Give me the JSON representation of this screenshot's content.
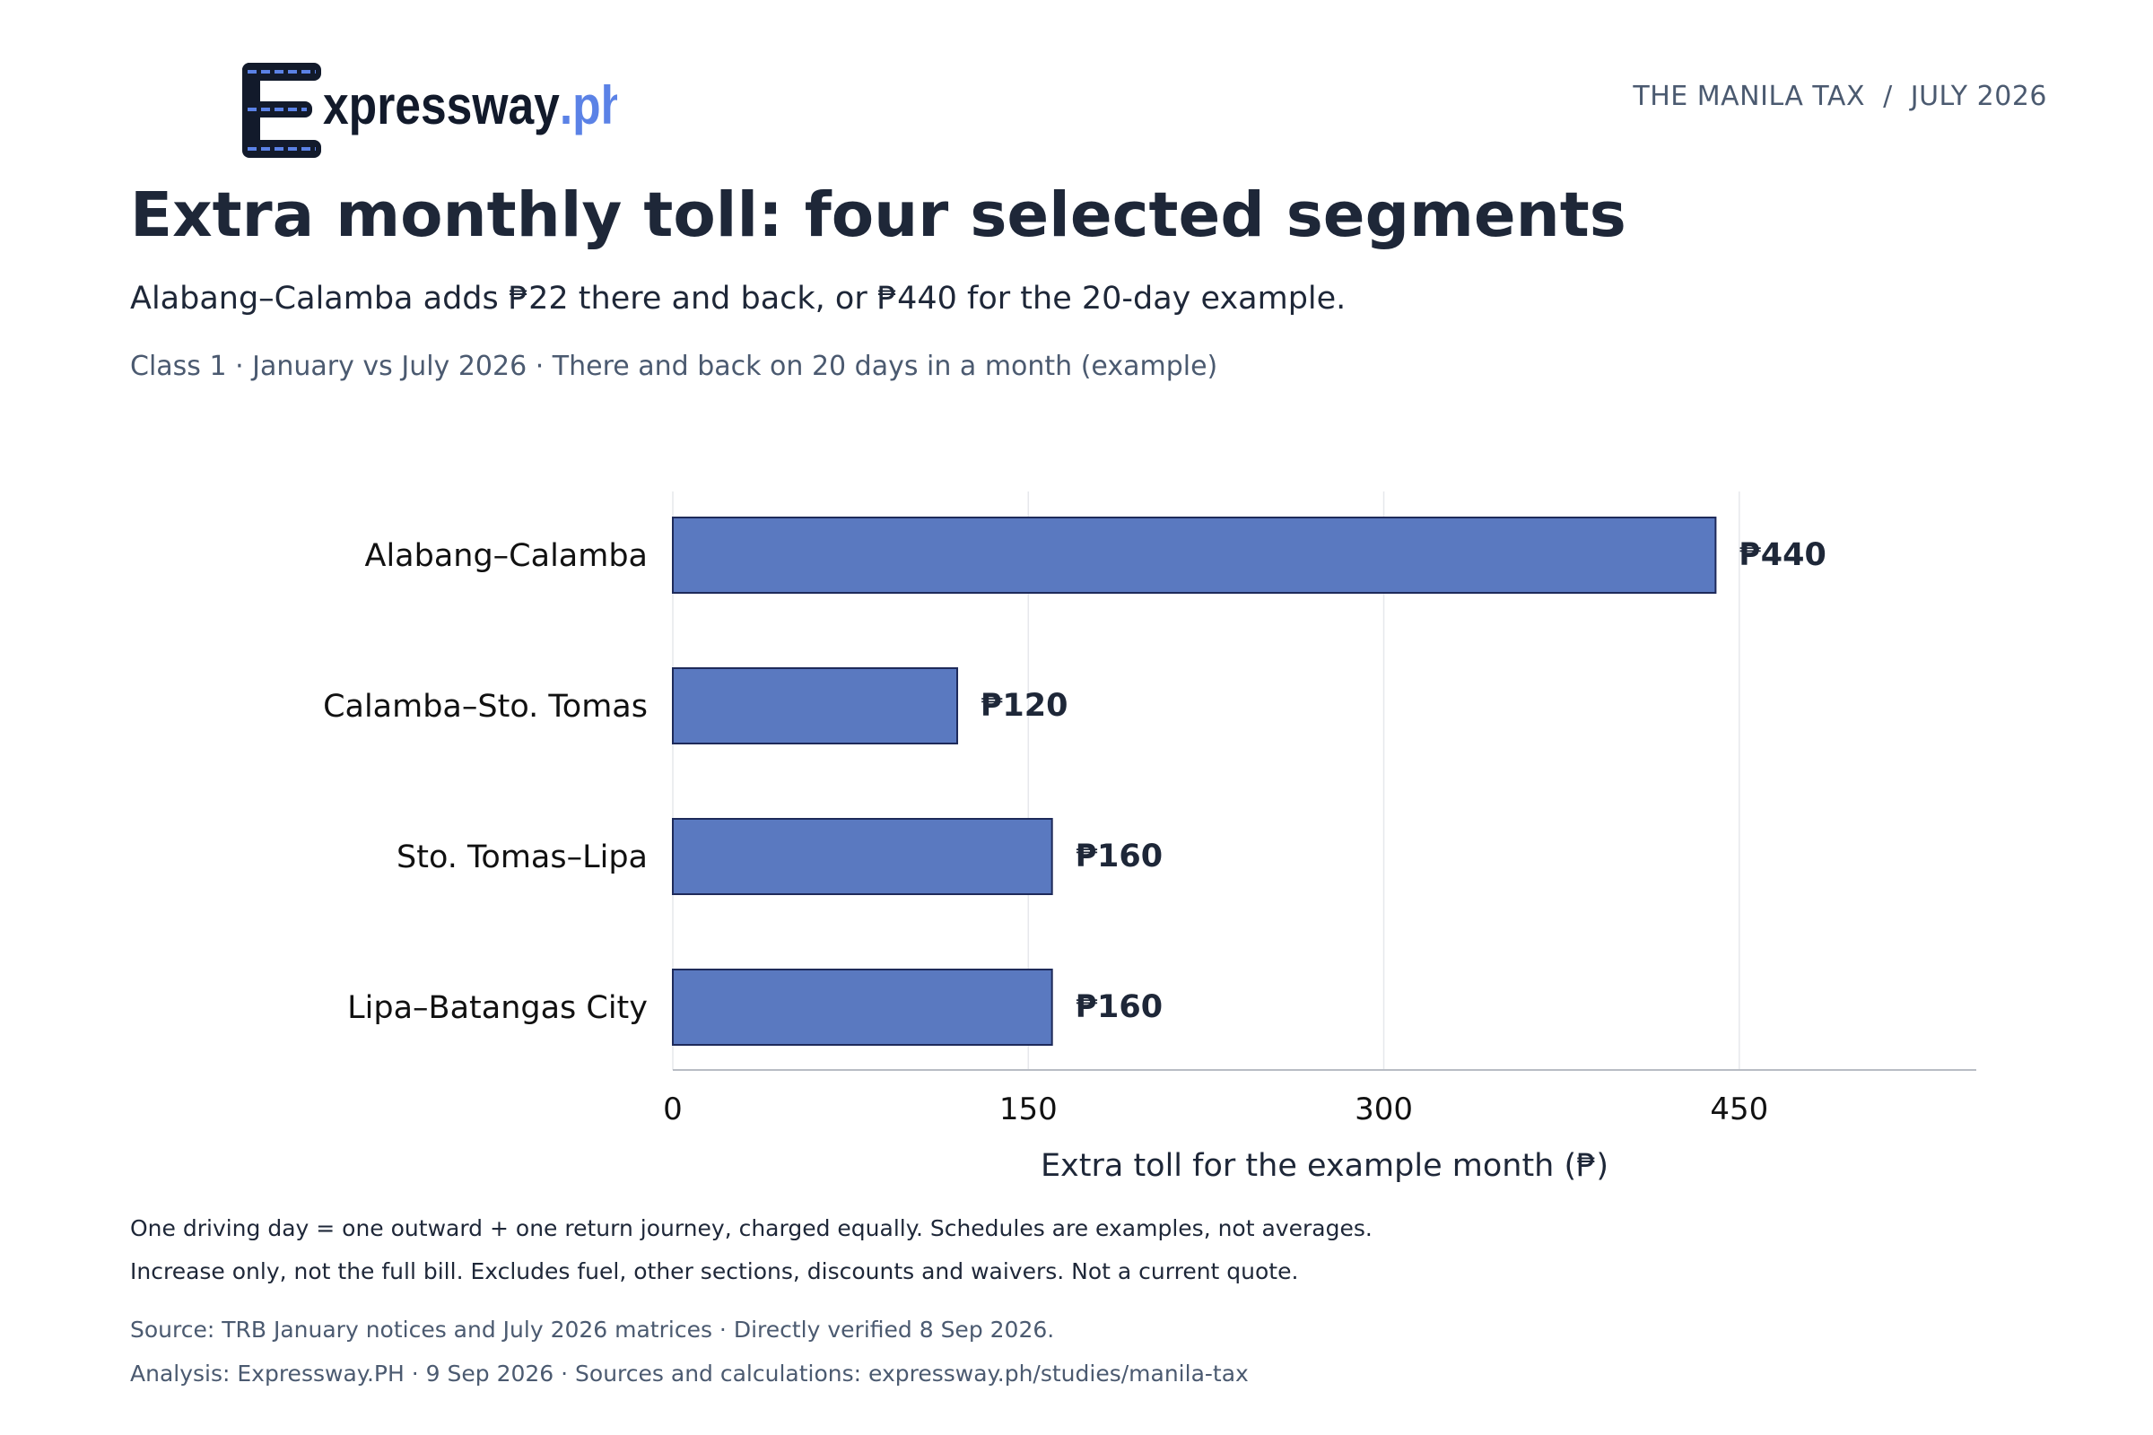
{
  "header": {
    "logo_text": "xpressway",
    "logo_domain": ".ph",
    "issue_label": "THE MANILA TAX  /  JULY 2026"
  },
  "title": "Extra monthly toll: four selected segments",
  "subtitle": "Alabang–Calamba adds ₱22 there and back, or ₱440 for the 20-day example.",
  "meta": "Class 1 · January vs July 2026 · There and back on 20 days in a month (example)",
  "colors": {
    "bar_fill": "#5a79c0",
    "bar_stroke": "#1e2a5a",
    "logo_dark": "#121a2b",
    "logo_accent": "#5b82e6",
    "text_dark": "#1e2738",
    "text_muted": "#4b5a70",
    "grid": "#e6e8ec"
  },
  "chart_data": {
    "type": "bar",
    "orientation": "horizontal",
    "categories": [
      "Alabang–Calamba",
      "Calamba–Sto. Tomas",
      "Sto. Tomas–Lipa",
      "Lipa–Batangas City"
    ],
    "values": [
      440,
      120,
      160,
      160
    ],
    "value_labels": [
      "₱440",
      "₱120",
      "₱160",
      "₱160"
    ],
    "xlabel": "Extra toll for the example month (₱)",
    "xlim": [
      0,
      550
    ],
    "xticks": [
      0,
      150,
      300,
      450
    ],
    "grid": true
  },
  "notes": [
    "One driving day = one outward + one return journey, charged equally. Schedules are examples, not averages.",
    "Increase only, not the full bill. Excludes fuel, other sections, discounts and waivers. Not a current quote."
  ],
  "sources": [
    "Source: TRB January notices and July 2026 matrices · Directly verified 8 Sep 2026.",
    "Analysis: Expressway.PH · 9 Sep 2026 · Sources and calculations: expressway.ph/studies/manila-tax"
  ]
}
